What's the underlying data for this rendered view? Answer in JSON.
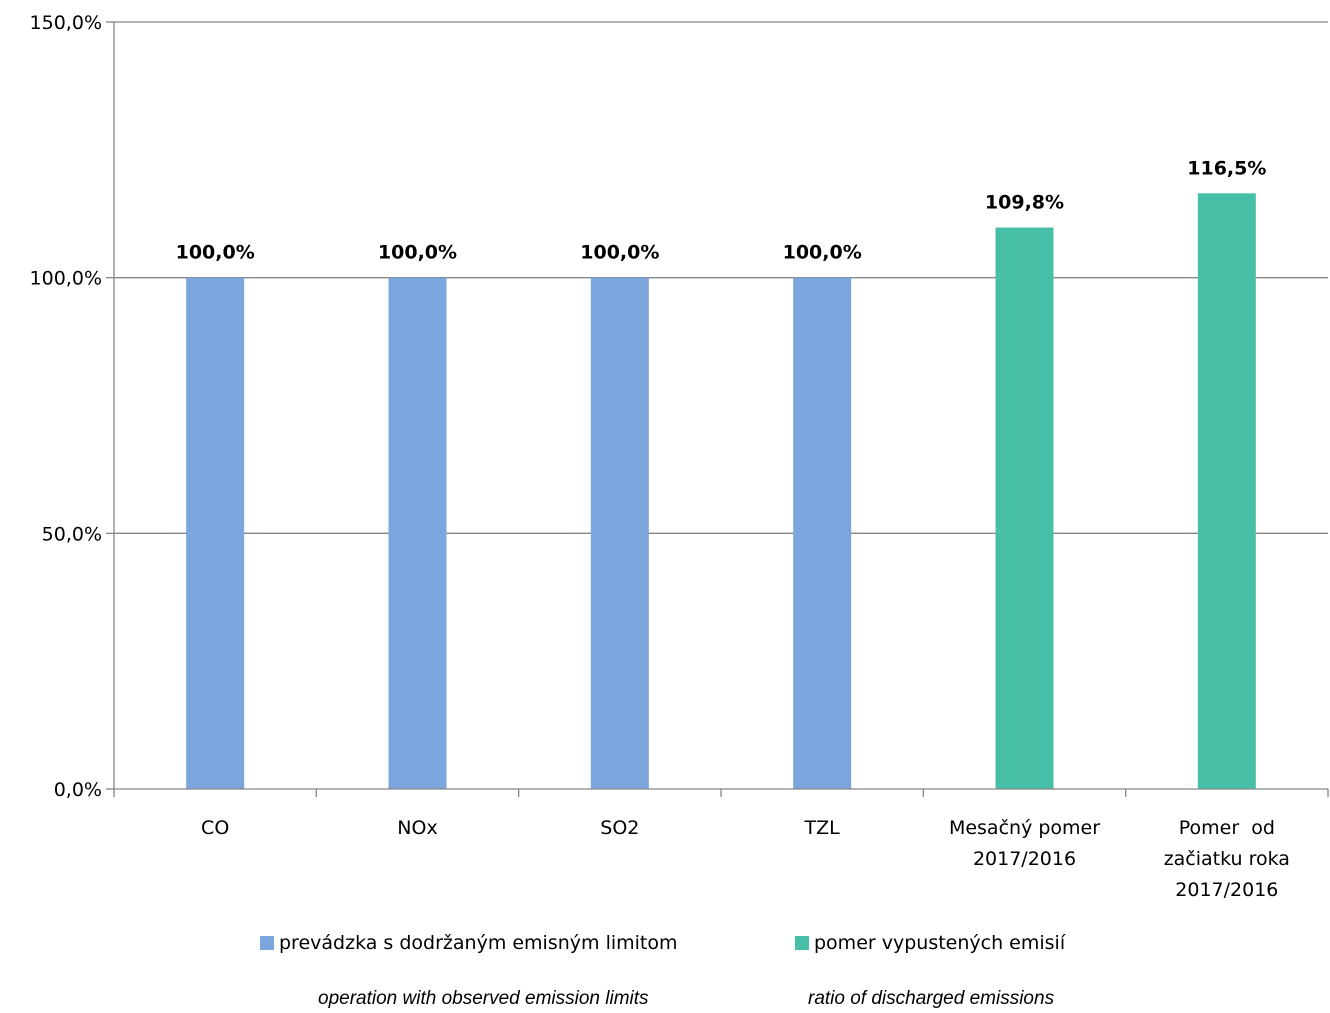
{
  "chart_data": {
    "type": "bar",
    "categories": [
      [
        "CO"
      ],
      [
        "NOx"
      ],
      [
        "SO2"
      ],
      [
        "TZL"
      ],
      [
        "Mesačný pomer",
        "2017/2016"
      ],
      [
        "Pomer  od",
        "začiatku roka",
        "2017/2016"
      ]
    ],
    "series": [
      {
        "name": "prevádzka s dodržaným emisným limitom",
        "subtitle": "operation with observed emission limits",
        "color": "#7aa6dd",
        "values": [
          100.0,
          100.0,
          100.0,
          100.0,
          null,
          null
        ],
        "labels": [
          "100,0%",
          "100,0%",
          "100,0%",
          "100,0%",
          "",
          ""
        ]
      },
      {
        "name": "pomer vypustených emisií",
        "subtitle": "ratio of discharged emissions",
        "color": "#47bfa7",
        "values": [
          null,
          null,
          null,
          null,
          109.8,
          116.5
        ],
        "labels": [
          "",
          "",
          "",
          "",
          "109,8%",
          "116,5%"
        ]
      }
    ],
    "y_ticks": [
      "0,0%",
      "50,0%",
      "100,0%",
      "150,0%"
    ],
    "ylim": [
      0,
      150
    ],
    "grid": true,
    "legend_position": "bottom",
    "axis_color": "#868686",
    "grid_color": "#868686"
  }
}
